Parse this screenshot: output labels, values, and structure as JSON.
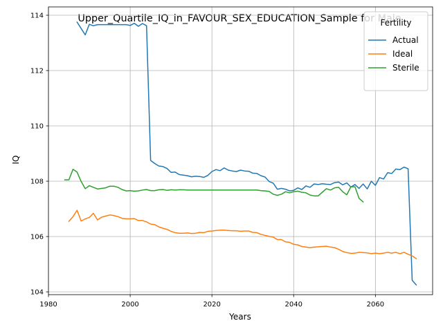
{
  "chart_data": {
    "type": "line",
    "title": "Upper_Quartile_IQ_in_FAVOUR_SEX_EDUCATION_Sample for Male",
    "xlabel": "Years",
    "ylabel": "IQ",
    "xlim": [
      1980,
      2074
    ],
    "ylim": [
      103.9,
      114.3
    ],
    "xticks": [
      1980,
      2000,
      2020,
      2040,
      2060
    ],
    "yticks": [
      104,
      106,
      108,
      110,
      112,
      114
    ],
    "grid": true,
    "legend": {
      "title": "Fertility",
      "placement": "top-right"
    },
    "series": [
      {
        "name": "Actual",
        "color": "#1f77b4",
        "x": [
          1987,
          1988,
          1989,
          1990,
          1991,
          1992,
          1993,
          1994,
          1995,
          1996,
          1997,
          1998,
          1999,
          2000,
          2001,
          2002,
          2003,
          2004,
          2005,
          2006,
          2007,
          2008,
          2009,
          2010,
          2011,
          2012,
          2013,
          2014,
          2015,
          2016,
          2017,
          2018,
          2019,
          2020,
          2021,
          2022,
          2023,
          2024,
          2025,
          2026,
          2027,
          2028,
          2029,
          2030,
          2031,
          2032,
          2033,
          2034,
          2035,
          2036,
          2037,
          2038,
          2039,
          2040,
          2041,
          2042,
          2043,
          2044,
          2045,
          2046,
          2047,
          2048,
          2049,
          2050,
          2051,
          2052,
          2053,
          2054,
          2055,
          2056,
          2057,
          2058,
          2059,
          2060,
          2061,
          2062,
          2063,
          2064,
          2065,
          2066,
          2067,
          2068,
          2069,
          2070
        ],
        "y": [
          113.75,
          113.52,
          113.29,
          113.67,
          113.62,
          113.66,
          113.66,
          113.66,
          113.66,
          113.66,
          113.66,
          113.66,
          113.66,
          113.63,
          113.71,
          113.6,
          113.7,
          113.62,
          108.75,
          108.64,
          108.55,
          108.53,
          108.46,
          108.32,
          108.33,
          108.24,
          108.22,
          108.2,
          108.16,
          108.18,
          108.17,
          108.14,
          108.21,
          108.35,
          108.42,
          108.38,
          108.48,
          108.4,
          108.37,
          108.35,
          108.4,
          108.37,
          108.36,
          108.29,
          108.28,
          108.2,
          108.15,
          107.99,
          107.93,
          107.71,
          107.74,
          107.71,
          107.65,
          107.67,
          107.76,
          107.7,
          107.83,
          107.78,
          107.9,
          107.88,
          107.91,
          107.89,
          107.88,
          107.95,
          107.97,
          107.87,
          107.94,
          107.79,
          107.88,
          107.74,
          107.9,
          107.72,
          108.0,
          107.85,
          108.13,
          108.08,
          108.31,
          108.28,
          108.44,
          108.42,
          108.51,
          108.45,
          104.42,
          104.25
        ]
      },
      {
        "name": "Ideal",
        "color": "#ff7f0e",
        "x": [
          1985,
          1986,
          1987,
          1988,
          1989,
          1990,
          1991,
          1992,
          1993,
          1994,
          1995,
          1996,
          1997,
          1998,
          1999,
          2000,
          2001,
          2002,
          2003,
          2004,
          2005,
          2006,
          2007,
          2008,
          2009,
          2010,
          2011,
          2012,
          2013,
          2014,
          2015,
          2016,
          2017,
          2018,
          2019,
          2020,
          2021,
          2022,
          2023,
          2024,
          2025,
          2026,
          2027,
          2028,
          2029,
          2030,
          2031,
          2032,
          2033,
          2034,
          2035,
          2036,
          2037,
          2038,
          2039,
          2040,
          2041,
          2042,
          2043,
          2044,
          2045,
          2046,
          2047,
          2048,
          2049,
          2050,
          2051,
          2052,
          2053,
          2054,
          2055,
          2056,
          2057,
          2058,
          2059,
          2060,
          2061,
          2062,
          2063,
          2064,
          2065,
          2066,
          2067,
          2068,
          2069,
          2070
        ],
        "y": [
          106.55,
          106.72,
          106.95,
          106.56,
          106.64,
          106.69,
          106.84,
          106.6,
          106.7,
          106.74,
          106.78,
          106.76,
          106.72,
          106.66,
          106.64,
          106.64,
          106.65,
          106.58,
          106.58,
          106.53,
          106.45,
          106.43,
          106.35,
          106.3,
          106.26,
          106.19,
          106.14,
          106.12,
          106.12,
          106.13,
          106.11,
          106.12,
          106.15,
          106.14,
          106.19,
          106.2,
          106.22,
          106.23,
          106.23,
          106.22,
          106.21,
          106.21,
          106.19,
          106.2,
          106.2,
          106.15,
          106.14,
          106.08,
          106.04,
          106.01,
          105.98,
          105.89,
          105.89,
          105.81,
          105.79,
          105.72,
          105.7,
          105.64,
          105.62,
          105.6,
          105.62,
          105.63,
          105.64,
          105.65,
          105.62,
          105.6,
          105.54,
          105.46,
          105.42,
          105.39,
          105.4,
          105.43,
          105.42,
          105.41,
          105.38,
          105.4,
          105.38,
          105.4,
          105.43,
          105.4,
          105.43,
          105.38,
          105.43,
          105.36,
          105.3,
          105.2
        ]
      },
      {
        "name": "Sterile",
        "color": "#2ca02c",
        "x": [
          1984,
          1985,
          1986,
          1987,
          1988,
          1989,
          1990,
          1991,
          1992,
          1993,
          1994,
          1995,
          1996,
          1997,
          1998,
          1999,
          2000,
          2001,
          2002,
          2003,
          2004,
          2005,
          2006,
          2007,
          2008,
          2009,
          2010,
          2011,
          2012,
          2013,
          2014,
          2015,
          2016,
          2017,
          2018,
          2019,
          2020,
          2021,
          2022,
          2023,
          2024,
          2025,
          2026,
          2027,
          2028,
          2029,
          2030,
          2031,
          2032,
          2033,
          2034,
          2035,
          2036,
          2037,
          2038,
          2039,
          2040,
          2041,
          2042,
          2043,
          2044,
          2045,
          2046,
          2047,
          2048,
          2049,
          2050,
          2051,
          2052,
          2053,
          2054,
          2055,
          2056,
          2057
        ],
        "y": [
          108.05,
          108.05,
          108.43,
          108.33,
          107.99,
          107.73,
          107.84,
          107.78,
          107.72,
          107.74,
          107.76,
          107.82,
          107.82,
          107.78,
          107.7,
          107.65,
          107.66,
          107.64,
          107.65,
          107.68,
          107.7,
          107.66,
          107.66,
          107.69,
          107.7,
          107.67,
          107.69,
          107.68,
          107.69,
          107.69,
          107.68,
          107.68,
          107.68,
          107.68,
          107.68,
          107.68,
          107.68,
          107.68,
          107.68,
          107.68,
          107.68,
          107.68,
          107.68,
          107.68,
          107.68,
          107.68,
          107.68,
          107.68,
          107.66,
          107.65,
          107.63,
          107.53,
          107.49,
          107.53,
          107.62,
          107.58,
          107.62,
          107.64,
          107.6,
          107.58,
          107.5,
          107.47,
          107.47,
          107.6,
          107.73,
          107.68,
          107.76,
          107.78,
          107.62,
          107.51,
          107.8,
          107.8,
          107.38,
          107.25
        ]
      }
    ]
  }
}
